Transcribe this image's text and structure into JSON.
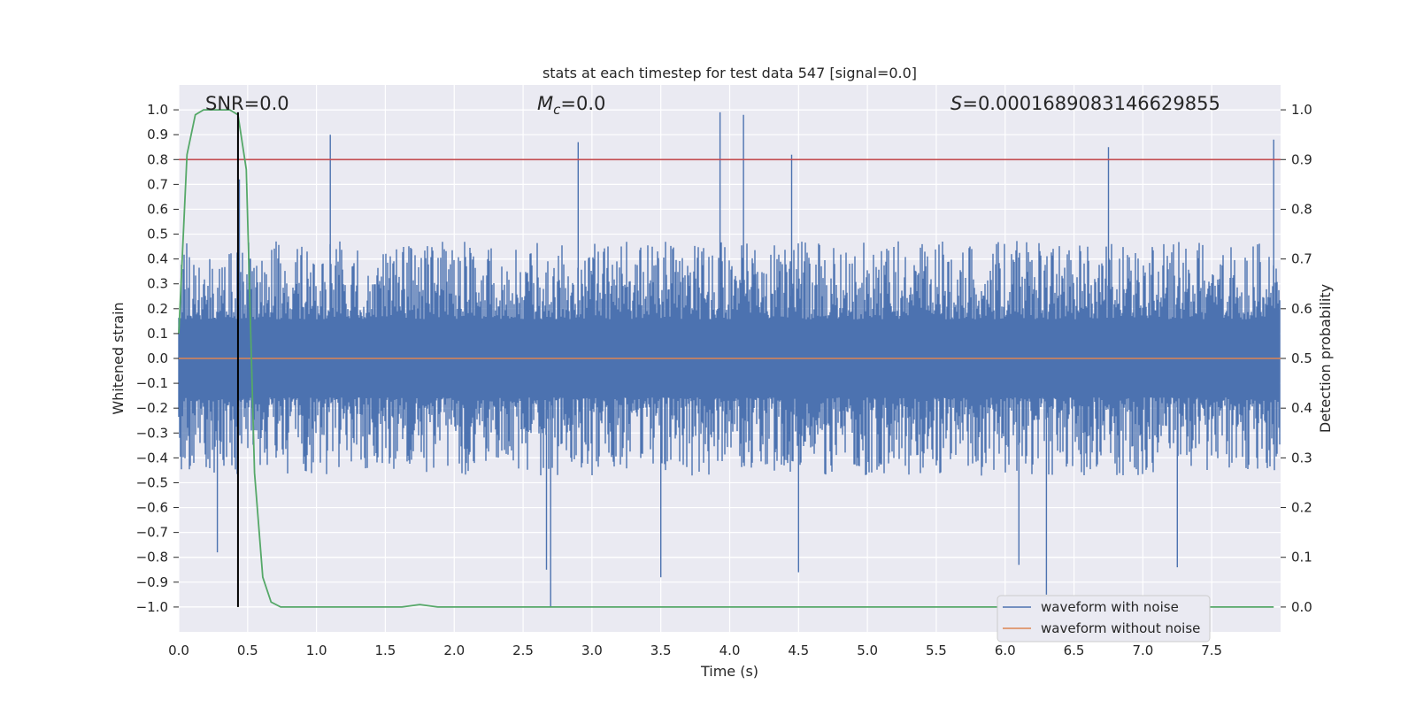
{
  "chart_data": {
    "type": "line",
    "title": "stats at each timestep for test data 547 [signal=0.0]",
    "xlabel": "Time (s)",
    "ylabel": "Whitened strain",
    "y2label": "Detection probability",
    "xlim": [
      0.0,
      8.0
    ],
    "ylim": [
      -1.1,
      1.1
    ],
    "y2lim": [
      -0.05,
      1.05
    ],
    "xticks": [
      "0.0",
      "0.5",
      "1.0",
      "1.5",
      "2.0",
      "2.5",
      "3.0",
      "3.5",
      "4.0",
      "4.5",
      "5.0",
      "5.5",
      "6.0",
      "6.5",
      "7.0",
      "7.5"
    ],
    "yticks": [
      "1.0",
      "0.9",
      "0.8",
      "0.7",
      "0.6",
      "0.5",
      "0.4",
      "0.3",
      "0.2",
      "0.1",
      "0.0",
      "−0.1",
      "−0.2",
      "−0.3",
      "−0.4",
      "−0.5",
      "−0.6",
      "−0.7",
      "−0.8",
      "−0.9",
      "−1.0"
    ],
    "y2ticks": [
      "1.0",
      "0.9",
      "0.8",
      "0.7",
      "0.6",
      "0.5",
      "0.4",
      "0.3",
      "0.2",
      "0.1",
      "0.0"
    ],
    "grid": true,
    "annotations": {
      "snr": "SNR=0.0",
      "mc": "M",
      "mc_sub": "c",
      "mc_value": "=0.0",
      "s_symbol": "S",
      "s_value": "=0.0001689083146629855"
    },
    "legend": {
      "placement": "lower-right",
      "entries": [
        "waveform with noise",
        "waveform without noise"
      ]
    },
    "threshold_line": {
      "axis": "y2",
      "value": 0.9,
      "color": "#c44e52"
    },
    "marker_line": {
      "x": 0.43,
      "color": "#000000"
    },
    "series": [
      {
        "name": "waveform with noise",
        "color": "#4c72b0",
        "kind": "noise",
        "typical_amplitude": 0.35,
        "peaks_positive": [
          {
            "x": 0.44,
            "y": 0.72
          },
          {
            "x": 1.1,
            "y": 0.9
          },
          {
            "x": 2.9,
            "y": 0.87
          },
          {
            "x": 3.93,
            "y": 0.99
          },
          {
            "x": 4.1,
            "y": 0.98
          },
          {
            "x": 4.45,
            "y": 0.82
          },
          {
            "x": 6.75,
            "y": 0.85
          },
          {
            "x": 7.95,
            "y": 0.88
          }
        ],
        "peaks_negative": [
          {
            "x": 0.28,
            "y": -0.78
          },
          {
            "x": 2.67,
            "y": -0.85
          },
          {
            "x": 2.7,
            "y": -1.0
          },
          {
            "x": 3.5,
            "y": -0.88
          },
          {
            "x": 4.5,
            "y": -0.86
          },
          {
            "x": 6.1,
            "y": -0.83
          },
          {
            "x": 6.3,
            "y": -0.95
          },
          {
            "x": 7.25,
            "y": -0.84
          }
        ]
      },
      {
        "name": "waveform without noise",
        "color": "#dd8452",
        "x": [
          0.0,
          8.0
        ],
        "y": [
          0.0,
          0.0
        ]
      },
      {
        "name": "",
        "color": "#55a868",
        "axis": "y2",
        "x": [
          0.0,
          0.06,
          0.12,
          0.18,
          0.25,
          0.31,
          0.37,
          0.43,
          0.49,
          0.55,
          0.61,
          0.67,
          0.74,
          0.8,
          1.0,
          1.5,
          1.62,
          1.75,
          1.88,
          2.0,
          3.0,
          5.0,
          7.0,
          7.95
        ],
        "y": [
          0.55,
          0.91,
          0.99,
          1.0,
          1.0,
          1.0,
          1.0,
          0.99,
          0.88,
          0.27,
          0.06,
          0.01,
          0.0,
          0.0,
          0.0,
          0.0,
          0.0,
          0.005,
          0.0,
          0.0,
          0.0,
          0.0,
          0.0,
          0.0
        ]
      }
    ]
  }
}
